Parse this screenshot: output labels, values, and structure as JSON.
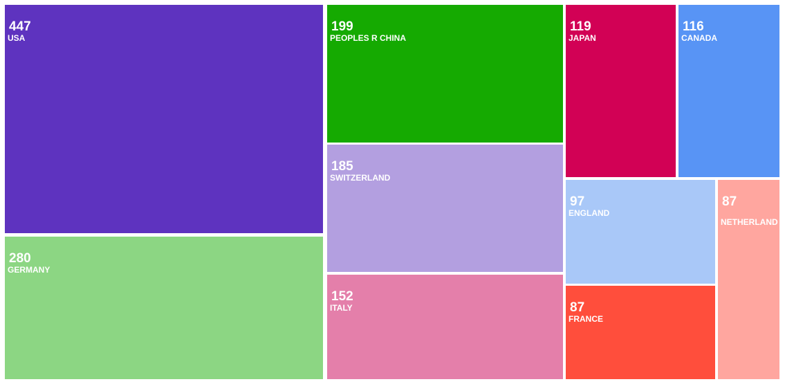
{
  "chart_data": {
    "type": "treemap",
    "categories": [
      "USA",
      "GERMANY",
      "PEOPLES R CHINA",
      "SWITZERLAND",
      "ITALY",
      "JAPAN",
      "CANADA",
      "ENGLAND",
      "NETHERLAND",
      "FRANCE"
    ],
    "values": [
      447,
      280,
      199,
      185,
      152,
      119,
      116,
      97,
      87,
      87
    ],
    "colors": [
      "#5e33bf",
      "#8cd683",
      "#15aa01",
      "#b39fe0",
      "#e47faa",
      "#d20155",
      "#5894f5",
      "#a9c8f8",
      "#ffa69f",
      "#ff4e3c"
    ],
    "title": ""
  }
}
